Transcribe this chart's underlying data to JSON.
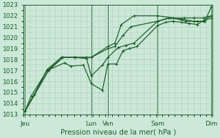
{
  "xlabel": "Pression niveau de la mer( hPa )",
  "background_color": "#cce8d8",
  "grid_color": "#aaccbb",
  "line_color": "#1a5c28",
  "vline_color": "#2a6c38",
  "ylim": [
    1013,
    1023
  ],
  "yticks": [
    1013,
    1014,
    1015,
    1016,
    1017,
    1018,
    1019,
    1020,
    1021,
    1022,
    1023
  ],
  "xlim": [
    0,
    12.0
  ],
  "xtick_positions": [
    0.1,
    4.3,
    5.35,
    8.5,
    11.9
  ],
  "xtick_labels": [
    "Jeu",
    "Lun",
    "Ven",
    "Sam",
    "Dim"
  ],
  "vline_positions": [
    0.1,
    4.3,
    5.35,
    8.5,
    11.9
  ],
  "line1_x": [
    0.1,
    0.5,
    1.5,
    2.6,
    3.0,
    3.8,
    4.3,
    5.0,
    5.35,
    5.9,
    6.3,
    6.7,
    7.2,
    8.5,
    9.0,
    9.5,
    10.0,
    10.5,
    11.0,
    11.9
  ],
  "line1_y": [
    1013.3,
    1014.7,
    1017.0,
    1017.7,
    1017.4,
    1017.5,
    1015.8,
    1015.2,
    1017.6,
    1017.6,
    1018.8,
    1019.0,
    1019.2,
    1021.1,
    1021.4,
    1021.5,
    1021.4,
    1021.3,
    1021.2,
    1022.0
  ],
  "line2_x": [
    0.1,
    0.7,
    1.5,
    2.4,
    3.2,
    4.0,
    4.3,
    5.0,
    5.35,
    6.0,
    6.5,
    7.0,
    8.5,
    9.2,
    10.0,
    10.8,
    11.4,
    11.9
  ],
  "line2_y": [
    1013.3,
    1014.8,
    1017.1,
    1018.2,
    1018.2,
    1018.1,
    1016.5,
    1017.5,
    1018.2,
    1019.1,
    1019.3,
    1019.5,
    1021.5,
    1021.8,
    1021.7,
    1021.5,
    1021.5,
    1021.8
  ],
  "line3_x": [
    0.1,
    1.5,
    2.5,
    3.2,
    4.0,
    4.3,
    5.35,
    5.8,
    6.3,
    6.8,
    8.5,
    9.3,
    10.2,
    10.8,
    11.4,
    11.9
  ],
  "line3_y": [
    1013.3,
    1017.0,
    1018.2,
    1018.2,
    1018.2,
    1018.2,
    1019.0,
    1019.2,
    1020.2,
    1021.0,
    1021.5,
    1021.8,
    1021.8,
    1021.8,
    1021.8,
    1022.0
  ],
  "line4_x": [
    0.1,
    1.6,
    2.5,
    3.3,
    4.3,
    5.35,
    5.8,
    6.2,
    7.0,
    8.5,
    9.5,
    10.3,
    11.0,
    11.5,
    11.9
  ],
  "line4_y": [
    1013.3,
    1017.0,
    1018.2,
    1018.2,
    1018.2,
    1019.2,
    1019.5,
    1021.2,
    1022.0,
    1022.0,
    1021.8,
    1021.5,
    1021.5,
    1021.5,
    1022.8
  ],
  "marker": "+",
  "markersize": 3.5,
  "linewidth": 0.9,
  "fontsize_xlabel": 7.5,
  "fontsize_ticks": 6.5
}
